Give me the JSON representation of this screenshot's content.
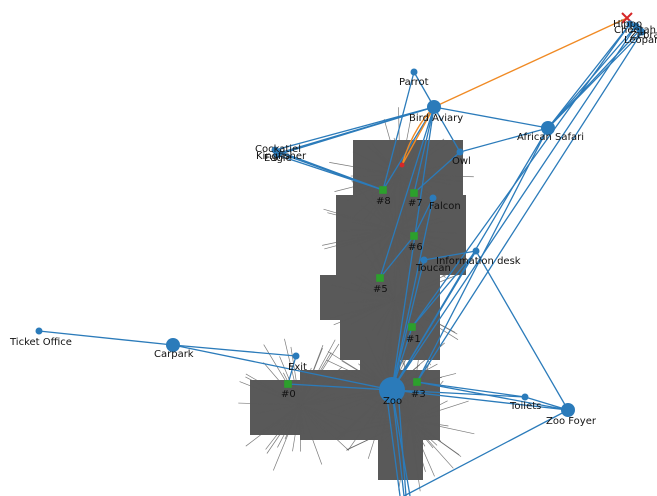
{
  "colors": {
    "edge": "#2b7bba",
    "node": "#2b7bba",
    "path": "#f08a24",
    "waypoint": "#2ca02c",
    "map": "#595959",
    "target": "#d62728"
  },
  "map_label": "occupancy grid map with laser scans",
  "nodes": [
    {
      "id": "zoo",
      "label": "Zoo",
      "size": "large"
    },
    {
      "id": "bird-aviary",
      "label": "Bird Aviary",
      "size": "medium"
    },
    {
      "id": "african-safari",
      "label": "African Safari",
      "size": "medium"
    },
    {
      "id": "carpark",
      "label": "Carpark",
      "size": "medium"
    },
    {
      "id": "zoo-foyer",
      "label": "Zoo Foyer",
      "size": "medium"
    },
    {
      "id": "ticket-office",
      "label": "Ticket Office",
      "size": "small"
    },
    {
      "id": "exit",
      "label": "Exit",
      "size": "small"
    },
    {
      "id": "toilets",
      "label": "Toilets",
      "size": "small"
    },
    {
      "id": "information-desk",
      "label": "Information desk",
      "size": "small"
    },
    {
      "id": "toucan",
      "label": "Toucan",
      "size": "small"
    },
    {
      "id": "falcon",
      "label": "Falcon",
      "size": "small"
    },
    {
      "id": "owl",
      "label": "Owl",
      "size": "small"
    },
    {
      "id": "parrot",
      "label": "Parrot",
      "size": "small"
    },
    {
      "id": "cockatiel",
      "label": "Cockatiel",
      "size": "small"
    },
    {
      "id": "kingfisher",
      "label": "Kingfisher",
      "size": "small"
    },
    {
      "id": "eagle",
      "label": "Eagle",
      "size": "small"
    },
    {
      "id": "hippo",
      "label": "Hippo",
      "size": "small"
    },
    {
      "id": "cheetah",
      "label": "Cheetah",
      "size": "small"
    },
    {
      "id": "zebra",
      "label": "Zebra",
      "size": "small"
    },
    {
      "id": "leopard",
      "label": "Leopard",
      "size": "small"
    },
    {
      "id": "wp0",
      "label": "#0",
      "size": "waypoint"
    },
    {
      "id": "wp1",
      "label": "#1",
      "size": "waypoint"
    },
    {
      "id": "wp3",
      "label": "#3",
      "size": "waypoint"
    },
    {
      "id": "wp5",
      "label": "#5",
      "size": "waypoint"
    },
    {
      "id": "wp6",
      "label": "#6",
      "size": "waypoint"
    },
    {
      "id": "wp7",
      "label": "#7",
      "size": "waypoint"
    },
    {
      "id": "wp8",
      "label": "#8",
      "size": "waypoint"
    }
  ],
  "edges": [
    [
      "ticket-office",
      "carpark"
    ],
    [
      "carpark",
      "exit"
    ],
    [
      "carpark",
      "zoo"
    ],
    [
      "exit",
      "wp0"
    ],
    [
      "wp0",
      "zoo"
    ],
    [
      "zoo",
      "toilets"
    ],
    [
      "zoo",
      "zoo-foyer"
    ],
    [
      "wp3",
      "zoo-foyer"
    ],
    [
      "toilets",
      "zoo-foyer"
    ],
    [
      "zoo",
      "wp1"
    ],
    [
      "zoo",
      "information-desk"
    ],
    [
      "zoo",
      "african-safari"
    ],
    [
      "wp1",
      "information-desk"
    ],
    [
      "information-desk",
      "zoo-foyer"
    ],
    [
      "information-desk",
      "toucan"
    ],
    [
      "zoo",
      "toucan"
    ],
    [
      "zoo",
      "falcon"
    ],
    [
      "zoo",
      "bird-aviary"
    ],
    [
      "wp6",
      "falcon"
    ],
    [
      "wp5",
      "wp6"
    ],
    [
      "wp5",
      "bird-aviary"
    ],
    [
      "wp7",
      "bird-aviary"
    ],
    [
      "wp7",
      "owl"
    ],
    [
      "wp8",
      "bird-aviary"
    ],
    [
      "wp8",
      "cockatiel"
    ],
    [
      "wp8",
      "kingfisher"
    ],
    [
      "wp8",
      "eagle"
    ],
    [
      "bird-aviary",
      "cockatiel"
    ],
    [
      "bird-aviary",
      "kingfisher"
    ],
    [
      "bird-aviary",
      "eagle"
    ],
    [
      "bird-aviary",
      "parrot"
    ],
    [
      "bird-aviary",
      "owl"
    ],
    [
      "bird-aviary",
      "african-safari"
    ],
    [
      "parrot",
      "wp8"
    ],
    [
      "owl",
      "african-safari"
    ],
    [
      "african-safari",
      "hippo"
    ],
    [
      "african-safari",
      "cheetah"
    ],
    [
      "african-safari",
      "zebra"
    ],
    [
      "african-safari",
      "leopard"
    ],
    [
      "wp3",
      "african-safari"
    ],
    [
      "wp1",
      "hippo"
    ],
    [
      "zoo",
      "cheetah"
    ],
    [
      "wp3",
      "leopard"
    ],
    [
      "zoo-foyer",
      "bottom-exit"
    ],
    [
      "zoo",
      "bottom-exit"
    ],
    [
      "wp3",
      "toilets"
    ]
  ],
  "planned_path": [
    "target",
    "bird-aviary",
    "robot"
  ]
}
